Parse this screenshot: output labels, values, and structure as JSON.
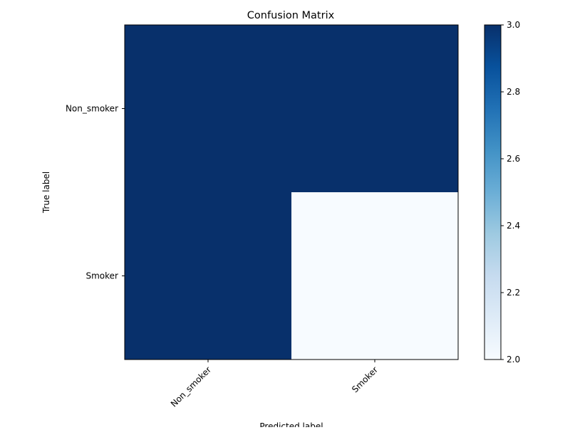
{
  "chart_data": {
    "type": "heatmap",
    "title": "Confusion Matrix",
    "xlabel": "Predicted label",
    "ylabel": "True label",
    "row_labels": [
      "Non_smoker",
      "Smoker"
    ],
    "col_labels": [
      "Non_smoker",
      "Smoker"
    ],
    "values": [
      [
        3,
        3
      ],
      [
        3,
        2
      ]
    ],
    "colorbar": {
      "min": 2.0,
      "max": 3.0,
      "ticks": [
        "2.0",
        "2.2",
        "2.4",
        "2.6",
        "2.8",
        "3.0"
      ],
      "colormap": "Blues"
    },
    "colors": {
      "low": "#f7fbff",
      "high": "#08306b"
    },
    "grid": false
  }
}
